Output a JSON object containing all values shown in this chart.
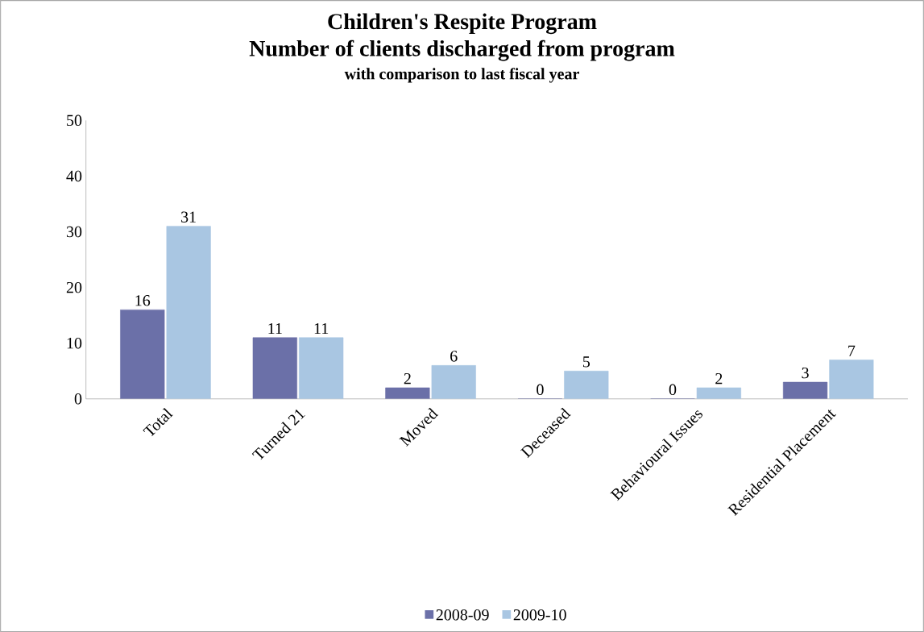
{
  "chart_data": {
    "type": "bar",
    "title": "Children's Respite Program",
    "subtitle": "Number of clients discharged from program",
    "annotations": [
      "with comparison to last fiscal year"
    ],
    "categories": [
      "Total",
      "Turned 21",
      "Moved",
      "Deceased",
      "Behavioural Issues",
      "Residential Placement"
    ],
    "series": [
      {
        "name": "2008-09",
        "color": "#6b70a8",
        "values": [
          16,
          11,
          2,
          0,
          0,
          3
        ]
      },
      {
        "name": "2009-10",
        "color": "#a9c6e2",
        "values": [
          31,
          11,
          6,
          5,
          2,
          7
        ]
      }
    ],
    "ylim": [
      0,
      50
    ],
    "yticks": [
      0,
      10,
      20,
      30,
      40,
      50
    ],
    "data_labels": true,
    "legend": "bottom"
  }
}
